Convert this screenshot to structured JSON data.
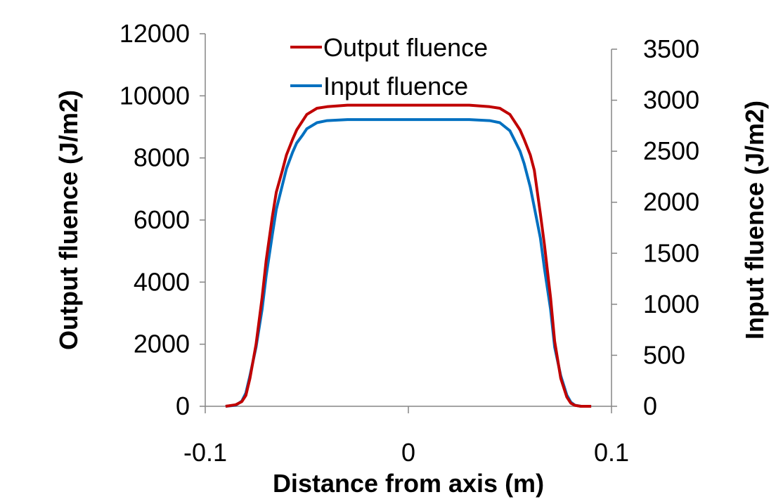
{
  "chart_data": {
    "type": "line",
    "title": "",
    "xlabel": "Distance from axis (m)",
    "ylabel_left": "Output fluence (J/m2)",
    "ylabel_right": "Input fluence (J/m2)",
    "xlim": [
      -0.1,
      0.1
    ],
    "ylim_left": [
      0,
      12000
    ],
    "ylim_right": [
      0,
      3500
    ],
    "x_ticks": [
      "-0.1",
      "0",
      "0.1"
    ],
    "y_left_ticks": [
      "0",
      "2000",
      "4000",
      "6000",
      "8000",
      "10000",
      "12000"
    ],
    "y_right_ticks": [
      "0",
      "500",
      "1000",
      "1500",
      "2000",
      "2500",
      "3000",
      "3500"
    ],
    "grid": false,
    "legend_position": "top-center",
    "series": [
      {
        "name": "Output fluence",
        "axis": "left",
        "color": "#c00000",
        "x": [
          -0.09,
          -0.085,
          -0.082,
          -0.08,
          -0.078,
          -0.075,
          -0.072,
          -0.07,
          -0.067,
          -0.065,
          -0.062,
          -0.06,
          -0.057,
          -0.055,
          -0.052,
          -0.05,
          -0.045,
          -0.04,
          -0.03,
          -0.02,
          0.0,
          0.02,
          0.03,
          0.04,
          0.045,
          0.05,
          0.052,
          0.055,
          0.057,
          0.06,
          0.062,
          0.065,
          0.067,
          0.07,
          0.072,
          0.075,
          0.078,
          0.08,
          0.082,
          0.085,
          0.09
        ],
        "y": [
          0,
          50,
          150,
          350,
          900,
          2000,
          3500,
          4700,
          6100,
          6900,
          7600,
          8100,
          8600,
          8900,
          9200,
          9400,
          9600,
          9650,
          9700,
          9700,
          9700,
          9700,
          9700,
          9650,
          9600,
          9400,
          9200,
          8900,
          8600,
          8100,
          7600,
          6200,
          5200,
          3500,
          2100,
          900,
          300,
          100,
          30,
          0,
          0
        ]
      },
      {
        "name": "Input fluence",
        "axis": "right",
        "color": "#0070c0",
        "x": [
          -0.09,
          -0.085,
          -0.082,
          -0.08,
          -0.078,
          -0.075,
          -0.072,
          -0.07,
          -0.067,
          -0.065,
          -0.062,
          -0.06,
          -0.057,
          -0.055,
          -0.052,
          -0.05,
          -0.045,
          -0.04,
          -0.03,
          -0.02,
          0.0,
          0.02,
          0.03,
          0.04,
          0.045,
          0.05,
          0.052,
          0.055,
          0.057,
          0.06,
          0.062,
          0.065,
          0.067,
          0.07,
          0.072,
          0.075,
          0.078,
          0.08,
          0.082,
          0.085,
          0.09
        ],
        "y": [
          0,
          10,
          50,
          130,
          300,
          580,
          950,
          1280,
          1680,
          1930,
          2170,
          2330,
          2490,
          2580,
          2660,
          2720,
          2780,
          2800,
          2810,
          2810,
          2810,
          2810,
          2810,
          2800,
          2780,
          2700,
          2620,
          2500,
          2380,
          2150,
          1950,
          1650,
          1350,
          950,
          580,
          300,
          110,
          40,
          10,
          0,
          0
        ]
      }
    ]
  }
}
